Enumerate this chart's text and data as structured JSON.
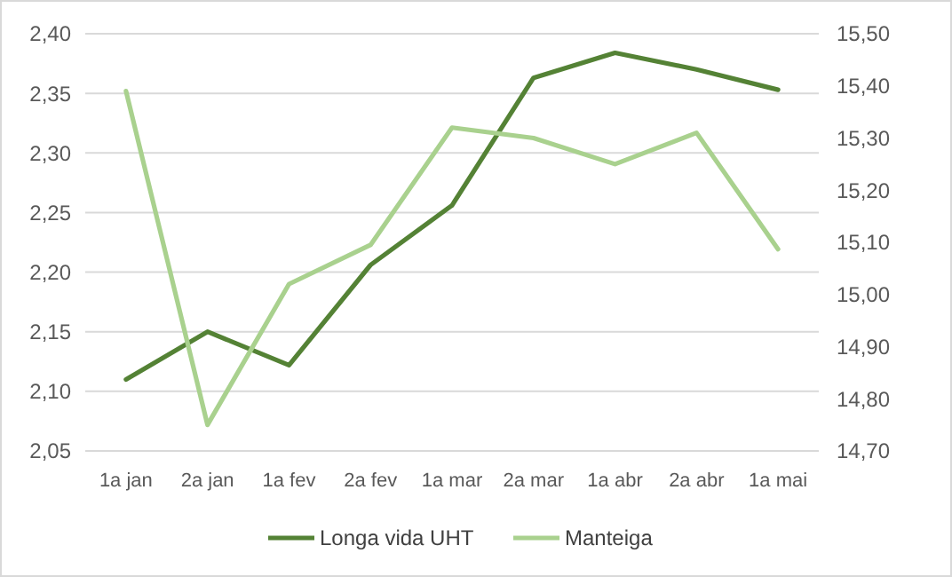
{
  "chart_data": {
    "type": "line",
    "categories": [
      "1a jan",
      "2a jan",
      "1a fev",
      "2a fev",
      "1a mar",
      "2a mar",
      "1a abr",
      "2a abr",
      "1a mai"
    ],
    "series": [
      {
        "name": "Longa vida UHT",
        "color": "#548235",
        "values": [
          2.11,
          2.15,
          2.122,
          2.206,
          2.256,
          2.363,
          2.384,
          2.37,
          2.353
        ]
      },
      {
        "name": "Manteiga",
        "color": "#a9d18e",
        "axis": "y2",
        "values": [
          15.39,
          14.75,
          15.02,
          15.095,
          15.32,
          15.3,
          15.25,
          15.31,
          15.087
        ]
      }
    ],
    "ylim": [
      2.05,
      2.4
    ],
    "yticks": [
      {
        "value": 2.05,
        "label": "2,05"
      },
      {
        "value": 2.1,
        "label": "2,10"
      },
      {
        "value": 2.15,
        "label": "2,15"
      },
      {
        "value": 2.2,
        "label": "2,20"
      },
      {
        "value": 2.25,
        "label": "2,25"
      },
      {
        "value": 2.3,
        "label": "2,30"
      },
      {
        "value": 2.35,
        "label": "2,35"
      },
      {
        "value": 2.4,
        "label": "2,40"
      }
    ],
    "y2lim": [
      14.7,
      15.5
    ],
    "y2ticks": [
      {
        "value": 14.7,
        "label": "14,70"
      },
      {
        "value": 14.8,
        "label": "14,80"
      },
      {
        "value": 14.9,
        "label": "14,90"
      },
      {
        "value": 15.0,
        "label": "15,00"
      },
      {
        "value": 15.1,
        "label": "15,10"
      },
      {
        "value": 15.2,
        "label": "15,20"
      },
      {
        "value": 15.3,
        "label": "15,30"
      },
      {
        "value": 15.4,
        "label": "15,40"
      },
      {
        "value": 15.5,
        "label": "15,50"
      }
    ],
    "grid": "y",
    "legend": "bottom",
    "marker": "none",
    "line_style": "solid"
  }
}
